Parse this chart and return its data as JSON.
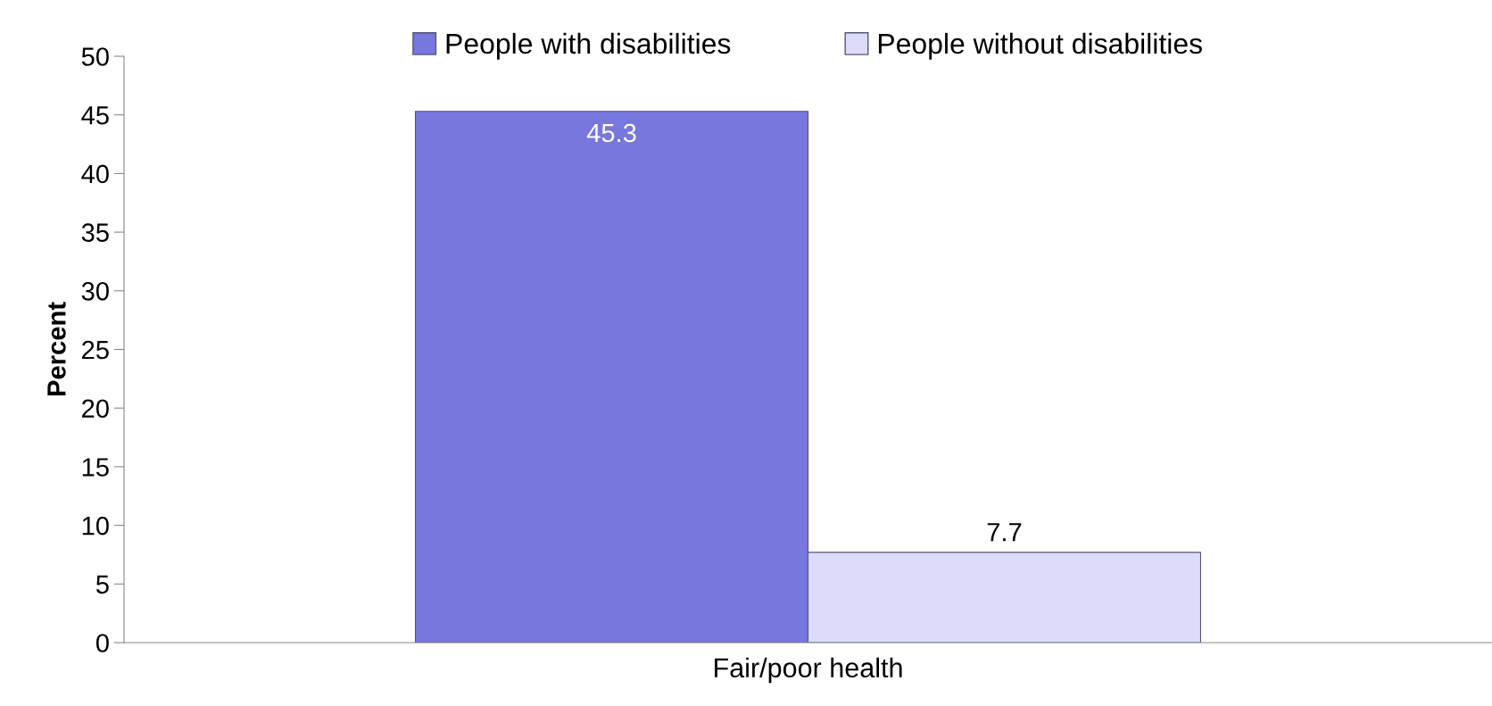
{
  "chart_data": {
    "type": "bar",
    "categories": [
      "Fair/poor health"
    ],
    "ylabel": "Percent",
    "series": [
      {
        "name": "People with disabilities",
        "color": "#7777dd",
        "values": [
          45.3
        ]
      },
      {
        "name": "People without disabilities",
        "color": "#dcdcfa",
        "values": [
          7.7
        ]
      }
    ],
    "ylim": [
      0,
      50
    ],
    "yticks": [
      0,
      5,
      10,
      15,
      20,
      25,
      30,
      35,
      40,
      45,
      50
    ],
    "grid": false,
    "legend": "top",
    "data_labels": true
  }
}
